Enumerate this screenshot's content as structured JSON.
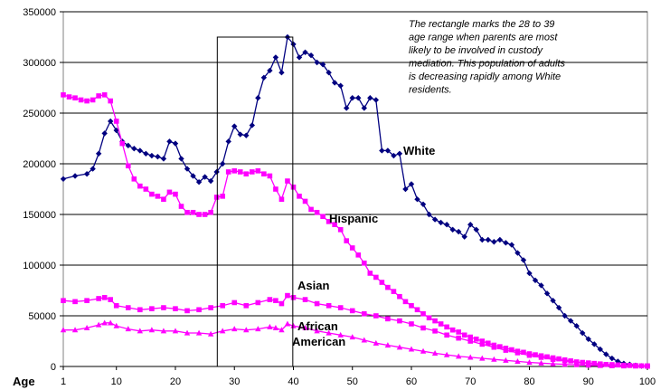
{
  "chart_data": {
    "type": "line",
    "xlabel": "Age",
    "ylabel": "",
    "xlim": [
      1,
      100
    ],
    "ylim": [
      0,
      350000
    ],
    "y_ticks": [
      "0",
      "50000",
      "100000",
      "150000",
      "200000",
      "250000",
      "300000",
      "350000"
    ],
    "x_ticks": [
      "1",
      "10",
      "20",
      "30",
      "40",
      "50",
      "60",
      "70",
      "80",
      "90",
      "100"
    ],
    "grid": "horizontal",
    "highlight_range": [
      28,
      39
    ],
    "annotation": [
      "The rectangle marks the 28 to 39",
      "age range when parents are most",
      "likely to be involved in custody",
      "mediation.  This population of adults",
      "is decreasing rapidly among White",
      "residents."
    ],
    "series": [
      {
        "name": "White",
        "label_lines": [
          "White"
        ],
        "color": "#000080",
        "marker": "diamond",
        "points": [
          [
            1,
            185000
          ],
          [
            3,
            188000
          ],
          [
            5,
            190000
          ],
          [
            6,
            195000
          ],
          [
            7,
            210000
          ],
          [
            8,
            230000
          ],
          [
            9,
            242000
          ],
          [
            10,
            233000
          ],
          [
            11,
            222000
          ],
          [
            12,
            218000
          ],
          [
            13,
            215000
          ],
          [
            14,
            213000
          ],
          [
            15,
            210000
          ],
          [
            16,
            208000
          ],
          [
            17,
            207000
          ],
          [
            18,
            205000
          ],
          [
            19,
            222000
          ],
          [
            20,
            220000
          ],
          [
            21,
            205000
          ],
          [
            22,
            195000
          ],
          [
            23,
            188000
          ],
          [
            24,
            182000
          ],
          [
            25,
            187000
          ],
          [
            26,
            183000
          ],
          [
            27,
            192000
          ],
          [
            28,
            200000
          ],
          [
            29,
            222000
          ],
          [
            30,
            237000
          ],
          [
            31,
            229000
          ],
          [
            32,
            228000
          ],
          [
            33,
            238000
          ],
          [
            34,
            265000
          ],
          [
            35,
            285000
          ],
          [
            36,
            292000
          ],
          [
            37,
            305000
          ],
          [
            38,
            290000
          ],
          [
            39,
            325000
          ],
          [
            40,
            318000
          ],
          [
            41,
            305000
          ],
          [
            42,
            310000
          ],
          [
            43,
            307000
          ],
          [
            44,
            300000
          ],
          [
            45,
            298000
          ],
          [
            46,
            290000
          ],
          [
            47,
            280000
          ],
          [
            48,
            277000
          ],
          [
            49,
            255000
          ],
          [
            50,
            265000
          ],
          [
            51,
            265000
          ],
          [
            52,
            255000
          ],
          [
            53,
            265000
          ],
          [
            54,
            263000
          ],
          [
            55,
            213000
          ],
          [
            56,
            213000
          ],
          [
            57,
            208000
          ],
          [
            58,
            210000
          ],
          [
            59,
            175000
          ],
          [
            60,
            180000
          ],
          [
            61,
            165000
          ],
          [
            62,
            160000
          ],
          [
            63,
            150000
          ],
          [
            64,
            145000
          ],
          [
            65,
            142000
          ],
          [
            66,
            140000
          ],
          [
            67,
            135000
          ],
          [
            68,
            133000
          ],
          [
            69,
            128000
          ],
          [
            70,
            140000
          ],
          [
            71,
            135000
          ],
          [
            72,
            125000
          ],
          [
            73,
            125000
          ],
          [
            74,
            123000
          ],
          [
            75,
            125000
          ],
          [
            76,
            122000
          ],
          [
            77,
            120000
          ],
          [
            78,
            112000
          ],
          [
            79,
            105000
          ],
          [
            80,
            92000
          ],
          [
            81,
            85000
          ],
          [
            82,
            80000
          ],
          [
            83,
            72000
          ],
          [
            84,
            65000
          ],
          [
            85,
            58000
          ],
          [
            86,
            50000
          ],
          [
            87,
            45000
          ],
          [
            88,
            40000
          ],
          [
            89,
            33000
          ],
          [
            90,
            27000
          ],
          [
            91,
            22000
          ],
          [
            92,
            17000
          ],
          [
            93,
            12000
          ],
          [
            94,
            8000
          ],
          [
            95,
            5000
          ],
          [
            96,
            3000
          ],
          [
            97,
            2000
          ],
          [
            98,
            1000
          ],
          [
            99,
            500
          ],
          [
            100,
            500
          ]
        ]
      },
      {
        "name": "Hispanic",
        "label_lines": [
          "Hispanic"
        ],
        "color": "#ff00ff",
        "marker": "square",
        "points": [
          [
            1,
            268000
          ],
          [
            2,
            266000
          ],
          [
            3,
            265000
          ],
          [
            4,
            263000
          ],
          [
            5,
            262000
          ],
          [
            6,
            263000
          ],
          [
            7,
            267000
          ],
          [
            8,
            268000
          ],
          [
            9,
            262000
          ],
          [
            10,
            242000
          ],
          [
            11,
            220000
          ],
          [
            12,
            198000
          ],
          [
            13,
            185000
          ],
          [
            14,
            178000
          ],
          [
            15,
            175000
          ],
          [
            16,
            170000
          ],
          [
            17,
            168000
          ],
          [
            18,
            165000
          ],
          [
            19,
            172000
          ],
          [
            20,
            170000
          ],
          [
            21,
            158000
          ],
          [
            22,
            152000
          ],
          [
            23,
            152000
          ],
          [
            24,
            150000
          ],
          [
            25,
            150000
          ],
          [
            26,
            152000
          ],
          [
            27,
            167000
          ],
          [
            28,
            168000
          ],
          [
            29,
            192000
          ],
          [
            30,
            193000
          ],
          [
            31,
            192000
          ],
          [
            32,
            190000
          ],
          [
            33,
            192000
          ],
          [
            34,
            193000
          ],
          [
            35,
            190000
          ],
          [
            36,
            188000
          ],
          [
            37,
            175000
          ],
          [
            38,
            165000
          ],
          [
            39,
            183000
          ],
          [
            40,
            177000
          ],
          [
            41,
            168000
          ],
          [
            42,
            163000
          ],
          [
            43,
            155000
          ],
          [
            44,
            152000
          ],
          [
            45,
            148000
          ],
          [
            46,
            143000
          ],
          [
            47,
            140000
          ],
          [
            48,
            135000
          ],
          [
            49,
            124000
          ],
          [
            50,
            117000
          ],
          [
            51,
            110000
          ],
          [
            52,
            102000
          ],
          [
            53,
            92000
          ],
          [
            54,
            88000
          ],
          [
            55,
            83000
          ],
          [
            56,
            78000
          ],
          [
            57,
            74000
          ],
          [
            58,
            69000
          ],
          [
            59,
            64000
          ],
          [
            60,
            60000
          ],
          [
            61,
            56000
          ],
          [
            62,
            52000
          ],
          [
            63,
            48000
          ],
          [
            64,
            45000
          ],
          [
            65,
            42000
          ],
          [
            66,
            39000
          ],
          [
            67,
            36000
          ],
          [
            68,
            34000
          ],
          [
            69,
            31000
          ],
          [
            70,
            29000
          ],
          [
            71,
            27000
          ],
          [
            72,
            25000
          ],
          [
            73,
            23000
          ],
          [
            74,
            21000
          ],
          [
            75,
            19500
          ],
          [
            76,
            18000
          ],
          [
            77,
            16500
          ],
          [
            78,
            15000
          ],
          [
            79,
            14000
          ],
          [
            80,
            12500
          ],
          [
            81,
            11500
          ],
          [
            82,
            10500
          ],
          [
            83,
            9500
          ],
          [
            84,
            8500
          ],
          [
            85,
            7500
          ],
          [
            86,
            6500
          ],
          [
            87,
            5500
          ],
          [
            88,
            4500
          ],
          [
            89,
            4000
          ],
          [
            90,
            3500
          ],
          [
            91,
            3000
          ],
          [
            92,
            2500
          ],
          [
            93,
            2000
          ],
          [
            94,
            1800
          ],
          [
            95,
            1500
          ],
          [
            96,
            1200
          ],
          [
            97,
            1000
          ],
          [
            98,
            800
          ],
          [
            99,
            600
          ],
          [
            100,
            500
          ]
        ]
      },
      {
        "name": "Asian",
        "label_lines": [
          "Asian"
        ],
        "color": "#ff00ff",
        "marker": "square",
        "points": [
          [
            1,
            65000
          ],
          [
            3,
            64000
          ],
          [
            5,
            65000
          ],
          [
            7,
            67000
          ],
          [
            8,
            68000
          ],
          [
            9,
            66000
          ],
          [
            10,
            60000
          ],
          [
            12,
            58000
          ],
          [
            14,
            56000
          ],
          [
            16,
            57000
          ],
          [
            18,
            58000
          ],
          [
            20,
            57000
          ],
          [
            22,
            55000
          ],
          [
            24,
            56000
          ],
          [
            26,
            58000
          ],
          [
            28,
            60000
          ],
          [
            30,
            63000
          ],
          [
            32,
            60000
          ],
          [
            34,
            63000
          ],
          [
            36,
            66000
          ],
          [
            37,
            65000
          ],
          [
            38,
            62000
          ],
          [
            39,
            70000
          ],
          [
            40,
            68000
          ],
          [
            42,
            66000
          ],
          [
            44,
            62000
          ],
          [
            46,
            60000
          ],
          [
            48,
            58000
          ],
          [
            50,
            55000
          ],
          [
            52,
            52000
          ],
          [
            54,
            50000
          ],
          [
            56,
            47000
          ],
          [
            58,
            45000
          ],
          [
            60,
            42000
          ],
          [
            62,
            38000
          ],
          [
            64,
            35000
          ],
          [
            66,
            31000
          ],
          [
            68,
            28000
          ],
          [
            70,
            25000
          ],
          [
            72,
            22000
          ],
          [
            74,
            19000
          ],
          [
            76,
            16000
          ],
          [
            78,
            13500
          ],
          [
            80,
            11000
          ],
          [
            82,
            9000
          ],
          [
            84,
            7000
          ],
          [
            86,
            5500
          ],
          [
            88,
            4000
          ],
          [
            90,
            3000
          ],
          [
            92,
            2000
          ],
          [
            94,
            1500
          ],
          [
            96,
            1000
          ],
          [
            98,
            700
          ],
          [
            100,
            500
          ]
        ]
      },
      {
        "name": "African American",
        "label_lines": [
          "African",
          "American"
        ],
        "color": "#ff00ff",
        "marker": "triangle",
        "points": [
          [
            1,
            36000
          ],
          [
            3,
            36000
          ],
          [
            5,
            38000
          ],
          [
            7,
            41000
          ],
          [
            8,
            43000
          ],
          [
            9,
            43000
          ],
          [
            10,
            40000
          ],
          [
            12,
            37000
          ],
          [
            14,
            35000
          ],
          [
            16,
            36000
          ],
          [
            18,
            35000
          ],
          [
            20,
            35000
          ],
          [
            22,
            33000
          ],
          [
            24,
            33000
          ],
          [
            26,
            32000
          ],
          [
            28,
            35000
          ],
          [
            30,
            37000
          ],
          [
            32,
            36000
          ],
          [
            34,
            37000
          ],
          [
            36,
            39000
          ],
          [
            37,
            38000
          ],
          [
            38,
            36000
          ],
          [
            39,
            42000
          ],
          [
            40,
            40000
          ],
          [
            42,
            38000
          ],
          [
            44,
            35000
          ],
          [
            46,
            33000
          ],
          [
            48,
            31000
          ],
          [
            50,
            29000
          ],
          [
            52,
            26000
          ],
          [
            54,
            23000
          ],
          [
            56,
            21000
          ],
          [
            58,
            19000
          ],
          [
            60,
            17000
          ],
          [
            62,
            15000
          ],
          [
            64,
            13000
          ],
          [
            66,
            11500
          ],
          [
            68,
            10000
          ],
          [
            70,
            9000
          ],
          [
            72,
            8000
          ],
          [
            74,
            7000
          ],
          [
            76,
            6000
          ],
          [
            78,
            5000
          ],
          [
            80,
            4000
          ],
          [
            82,
            3300
          ],
          [
            84,
            2700
          ],
          [
            86,
            2100
          ],
          [
            88,
            1600
          ],
          [
            90,
            1200
          ],
          [
            92,
            900
          ],
          [
            94,
            600
          ],
          [
            96,
            400
          ],
          [
            98,
            300
          ],
          [
            100,
            200
          ]
        ]
      }
    ]
  }
}
